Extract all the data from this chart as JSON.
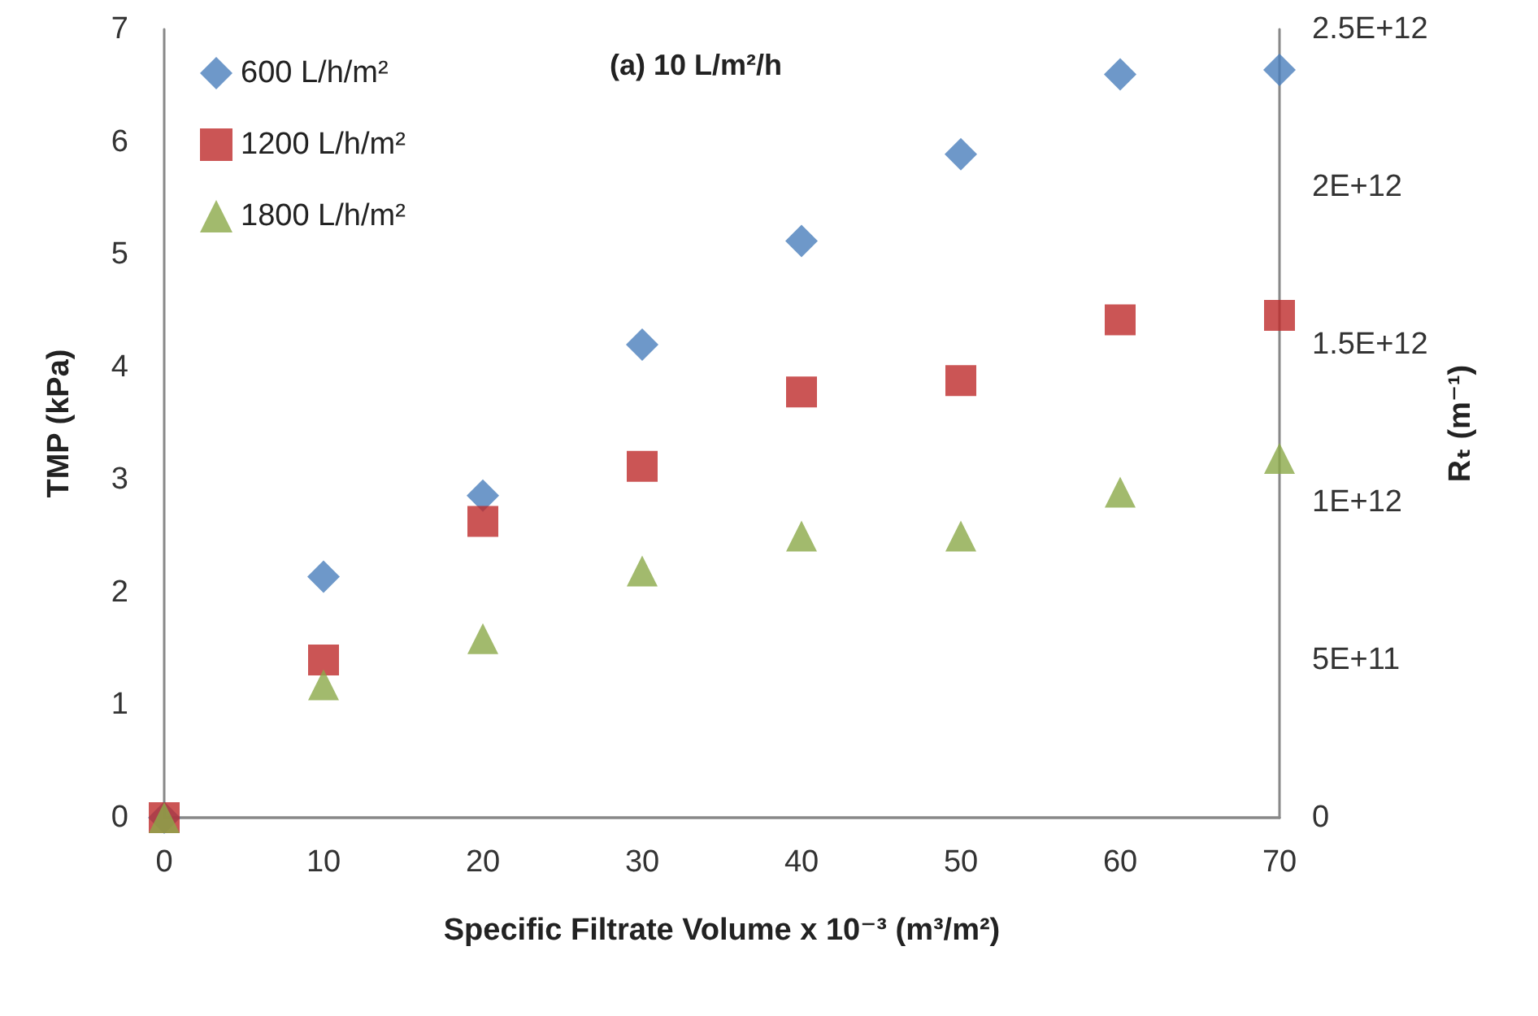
{
  "chart_data": {
    "type": "scatter",
    "title": "(a) 10 L/m²/h",
    "xlabel": "Specific Filtrate Volume x 10⁻³ (m³/m²)",
    "ylabel": "TMP (kPa)",
    "y2label": "Rₜ (m⁻¹)",
    "x": [
      0,
      10,
      20,
      30,
      40,
      50,
      60,
      70
    ],
    "series": [
      {
        "name": "600 L/h/m²",
        "color": "#4a7ebb",
        "marker": "diamond",
        "values": [
          0,
          2.14,
          2.86,
          4.2,
          5.12,
          5.89,
          6.6,
          6.64
        ]
      },
      {
        "name": "1200 L/h/m²",
        "color": "#be2a2a",
        "marker": "square",
        "values": [
          0,
          1.4,
          2.63,
          3.12,
          3.78,
          3.88,
          4.42,
          4.46
        ]
      },
      {
        "name": "1800 L/h/m²",
        "color": "#8ba948",
        "marker": "triangle",
        "values": [
          0,
          1.18,
          1.59,
          2.19,
          2.5,
          2.5,
          2.89,
          3.19
        ]
      }
    ],
    "xlim": [
      0,
      70
    ],
    "xticks": [
      0,
      10,
      20,
      30,
      40,
      50,
      60,
      70
    ],
    "ylim": [
      0,
      7
    ],
    "yticks": [
      0,
      1,
      2,
      3,
      4,
      5,
      6,
      7
    ],
    "y2lim": [
      0,
      2500000000000
    ],
    "y2ticks": [
      0,
      {
        "value": 500000000000,
        "label": "5E+11"
      },
      {
        "value": 1000000000000,
        "label": "1E+12"
      },
      {
        "value": 1500000000000,
        "label": "1.5E+12"
      },
      {
        "value": 2000000000000,
        "label": "2E+12"
      },
      {
        "value": 2500000000000,
        "label": "2.5E+12"
      }
    ],
    "grid": false,
    "legend": "top left"
  }
}
